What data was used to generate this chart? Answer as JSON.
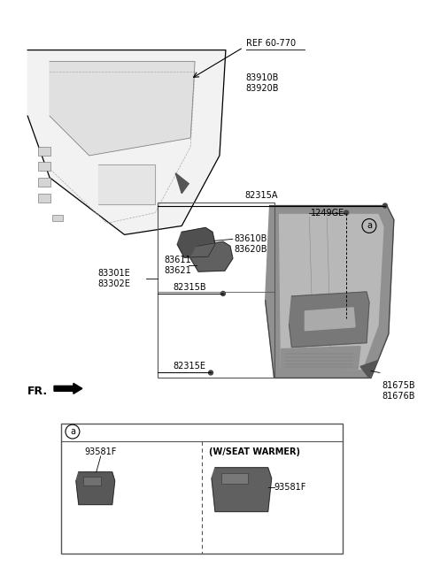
{
  "bg_color": "#ffffff",
  "fig_width": 4.8,
  "fig_height": 6.57,
  "dpi": 100,
  "labels": {
    "ref": "REF 60-770",
    "83910B_83920B": "83910B\n83920B",
    "82315A": "82315A",
    "1249GE": "1249GE",
    "83610B_83620B": "83610B\n83620B",
    "83611_83621": "83611\n83621",
    "83301E_83302E": "83301E\n83302E",
    "82315B": "82315B",
    "82315E": "82315E",
    "81675B_81676B": "81675B\n81676B",
    "FR": "FR.",
    "a_label": "a",
    "93581F_left": "93581F",
    "93581F_right": "93581F",
    "wseat": "(W/SEAT WARMER)"
  },
  "colors": {
    "black": "#000000",
    "dark_gray": "#404040",
    "mid_gray": "#888888",
    "light_gray": "#cccccc",
    "part_fill": "#b0b0b0",
    "line_color": "#333333",
    "box_border": "#555555"
  }
}
